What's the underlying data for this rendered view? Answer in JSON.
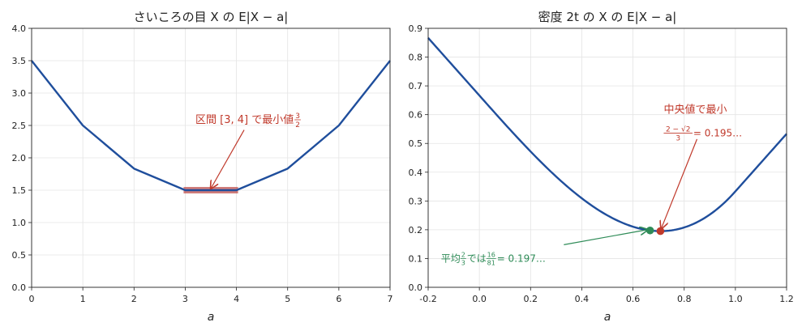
{
  "chart_data": [
    {
      "type": "line",
      "title": "さいころの目 X の E|X − a|",
      "xlabel": "a",
      "ylabel": "",
      "xlim": [
        0,
        7
      ],
      "ylim": [
        0,
        4
      ],
      "xticks": [
        0,
        1,
        2,
        3,
        4,
        5,
        6,
        7
      ],
      "xtick_labels": [
        "0",
        "1",
        "2",
        "3",
        "4",
        "5",
        "6",
        "7"
      ],
      "yticks": [
        0,
        0.5,
        1,
        1.5,
        2,
        2.5,
        3,
        3.5,
        4
      ],
      "ytick_labels": [
        "0.0",
        "0.5",
        "1.0",
        "1.5",
        "2.0",
        "2.5",
        "3.0",
        "3.5",
        "4.0"
      ],
      "grid": true,
      "line_color": "#1f4e9c",
      "series": [
        {
          "x": [
            0,
            1,
            2,
            3,
            4,
            5,
            6,
            7
          ],
          "y": [
            3.5,
            2.5,
            1.8333,
            1.5,
            1.5,
            1.8333,
            2.5,
            3.5
          ]
        }
      ],
      "highlight": {
        "x_start": 3,
        "x_end": 4,
        "y": 1.5,
        "color": "#c0504d"
      },
      "annotation": {
        "text": "区間 [3, 4] で最小値 ",
        "fraction": {
          "num": "3",
          "den": "2"
        },
        "color": "#c0392b",
        "arrow_to": [
          3.5,
          1.5
        ],
        "arrow_from": [
          4.15,
          2.43
        ],
        "text_at": [
          3.2,
          2.6
        ]
      }
    },
    {
      "type": "line",
      "title": "密度 2t の X の E|X − a|",
      "xlabel": "a",
      "ylabel": "",
      "xlim": [
        -0.2,
        1.2
      ],
      "ylim": [
        0,
        0.9
      ],
      "xticks": [
        -0.2,
        0,
        0.2,
        0.4,
        0.6,
        0.8,
        1.0,
        1.2
      ],
      "xtick_labels": [
        "-0.2",
        "0.0",
        "0.2",
        "0.4",
        "0.6",
        "0.8",
        "1.0",
        "1.2"
      ],
      "yticks": [
        0,
        0.1,
        0.2,
        0.3,
        0.4,
        0.5,
        0.6,
        0.7,
        0.8,
        0.9
      ],
      "ytick_labels": [
        "0.0",
        "0.1",
        "0.2",
        "0.3",
        "0.4",
        "0.5",
        "0.6",
        "0.7",
        "0.8",
        "0.9"
      ],
      "grid": true,
      "line_color": "#1f4e9c",
      "series": [
        {
          "x": [
            -0.2,
            -0.1,
            0.0,
            0.1,
            0.2,
            0.3,
            0.4,
            0.5,
            0.6,
            0.7,
            0.8,
            0.9,
            1.0,
            1.1,
            1.2
          ],
          "y": [
            0.8667,
            0.7667,
            0.6667,
            0.5673,
            0.472,
            0.3847,
            0.3093,
            0.25,
            0.2107,
            0.1953,
            0.208,
            0.2527,
            0.3333,
            0.4333,
            0.5333
          ]
        }
      ],
      "points": [
        {
          "x": 0.6667,
          "y": 0.1975,
          "color": "#2e8b57"
        },
        {
          "x": 0.7071,
          "y": 0.1953,
          "color": "#c0392b"
        }
      ],
      "annotations": [
        {
          "line1": "中央値で最小",
          "frac_num": "2 − √2",
          "frac_den": "3",
          "tail": " = 0.195…",
          "color": "#c0392b",
          "arrow_to": [
            0.7071,
            0.1953
          ],
          "arrow_from": [
            0.85,
            0.515
          ],
          "text_at": [
            0.72,
            0.62
          ]
        },
        {
          "prefix": "平均 ",
          "frac1_num": "2",
          "frac1_den": "3",
          "middle": " では ",
          "frac2_num": "16",
          "frac2_den": "81",
          "tail": " = 0.197…",
          "color": "#2e8b57",
          "arrow_to": [
            0.6667,
            0.1975
          ],
          "arrow_from": [
            0.33,
            0.148
          ],
          "text_at": [
            -0.15,
            0.1
          ]
        }
      ]
    }
  ]
}
